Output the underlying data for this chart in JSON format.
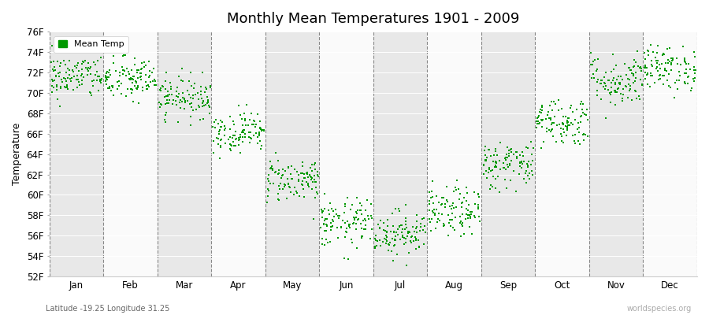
{
  "title": "Monthly Mean Temperatures 1901 - 2009",
  "ylabel": "Temperature",
  "xlabel_lat_lon": "Latitude -19.25 Longitude 31.25",
  "watermark": "worldspecies.org",
  "legend_label": "Mean Temp",
  "marker_color": "#009900",
  "marker_size": 2.5,
  "ylim": [
    52,
    76
  ],
  "yticks": [
    52,
    54,
    56,
    58,
    60,
    62,
    64,
    66,
    68,
    70,
    72,
    74,
    76
  ],
  "ytick_labels": [
    "52F",
    "54F",
    "56F",
    "58F",
    "60F",
    "62F",
    "64F",
    "66F",
    "68F",
    "70F",
    "72F",
    "74F",
    "76F"
  ],
  "months": [
    "Jan",
    "Feb",
    "Mar",
    "Apr",
    "May",
    "Jun",
    "Jul",
    "Aug",
    "Sep",
    "Oct",
    "Nov",
    "Dec"
  ],
  "bg_color": "#f0f0f0",
  "band_colors": [
    "#e8e8e8",
    "#fafafa"
  ],
  "n_years": 109,
  "monthly_means": [
    71.6,
    71.3,
    69.6,
    66.2,
    61.5,
    57.2,
    56.3,
    58.3,
    63.0,
    67.2,
    71.2,
    72.4
  ],
  "monthly_stds": [
    1.1,
    1.1,
    1.0,
    1.0,
    1.1,
    1.2,
    1.1,
    1.2,
    1.2,
    1.2,
    1.3,
    1.1
  ],
  "title_fontsize": 13,
  "axis_label_fontsize": 9,
  "tick_fontsize": 8.5
}
